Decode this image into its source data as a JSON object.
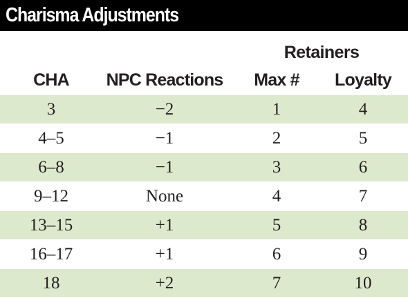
{
  "title": "Charisma Adjustments",
  "group_header": "Retainers",
  "columns": {
    "cha": "CHA",
    "npc": "NPC Reactions",
    "max": "Max #",
    "loyalty": "Loyalty"
  },
  "row_shade_color": "#dce9cd",
  "rows": [
    {
      "cha": "3",
      "npc": "−2",
      "max": "1",
      "loyalty": "4"
    },
    {
      "cha": "4–5",
      "npc": "−1",
      "max": "2",
      "loyalty": "5"
    },
    {
      "cha": "6–8",
      "npc": "−1",
      "max": "3",
      "loyalty": "6"
    },
    {
      "cha": "9–12",
      "npc": "None",
      "max": "4",
      "loyalty": "7"
    },
    {
      "cha": "13–15",
      "npc": "+1",
      "max": "5",
      "loyalty": "8"
    },
    {
      "cha": "16–17",
      "npc": "+1",
      "max": "6",
      "loyalty": "9"
    },
    {
      "cha": "18",
      "npc": "+2",
      "max": "7",
      "loyalty": "10"
    }
  ]
}
